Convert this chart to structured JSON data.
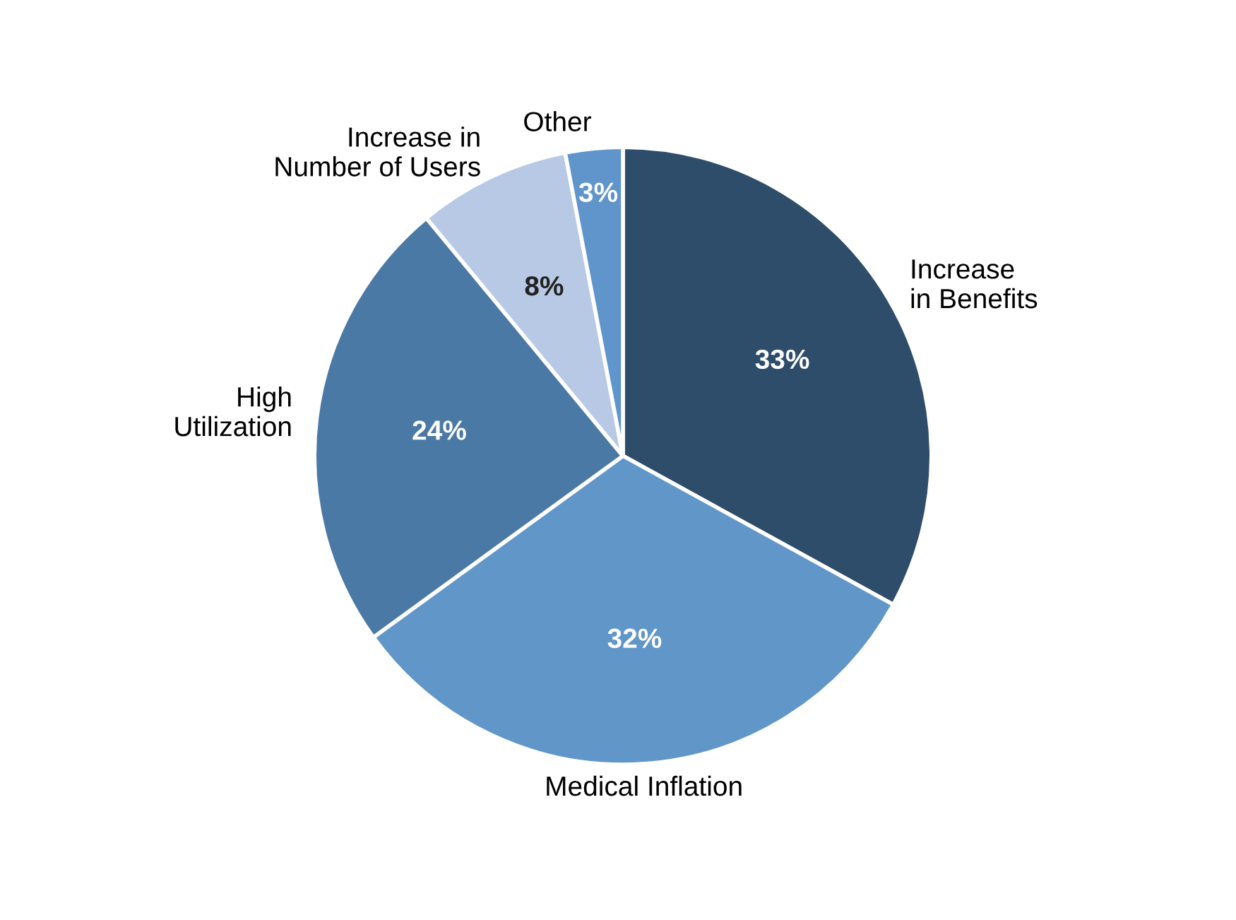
{
  "chart_data": {
    "type": "pie",
    "categories": [
      "Increase\nin Benefits",
      "Medical Inflation",
      "High\nUtilization",
      "Increase in\nNumber of Users",
      "Other"
    ],
    "values": [
      33,
      32,
      24,
      8,
      3
    ],
    "value_labels": [
      "33%",
      "32%",
      "24%",
      "8%",
      "3%"
    ],
    "colors": [
      "#2e4d6b",
      "#6196c9",
      "#4b79a5",
      "#b7c9e5",
      "#5f95cb"
    ],
    "legend": false
  }
}
